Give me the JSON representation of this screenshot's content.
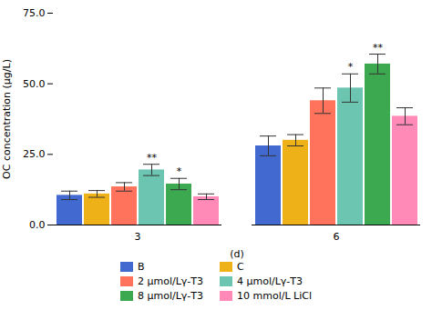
{
  "chart_data": {
    "type": "bar",
    "categories": [
      "3",
      "6"
    ],
    "xlabel": "(d)",
    "ylabel": "OC concentration (μg/L)",
    "series": [
      {
        "name": "B",
        "values": [
          10.5,
          28.0
        ],
        "errors": [
          1.5,
          3.5
        ],
        "annotations": [
          null,
          null
        ]
      },
      {
        "name": "C",
        "values": [
          11.0,
          30.0
        ],
        "errors": [
          1.2,
          2.0
        ],
        "annotations": [
          null,
          null
        ]
      },
      {
        "name": "2 μmol/Lγ-T3",
        "values": [
          13.5,
          44.0
        ],
        "errors": [
          1.5,
          4.5
        ],
        "annotations": [
          null,
          null
        ]
      },
      {
        "name": "4 μmol/Lγ-T3",
        "values": [
          19.5,
          48.5
        ],
        "errors": [
          2.0,
          5.0
        ],
        "annotations": [
          "**",
          "*"
        ]
      },
      {
        "name": "8 μmol/Lγ-T3",
        "values": [
          14.5,
          57.0
        ],
        "errors": [
          2.0,
          3.5
        ],
        "annotations": [
          "*",
          "**"
        ]
      },
      {
        "name": "10 mmol/L LiCl",
        "values": [
          10.0,
          38.5
        ],
        "errors": [
          1.0,
          3.0
        ],
        "annotations": [
          null,
          null
        ]
      }
    ],
    "ylim": [
      0,
      75.0
    ],
    "yticks": [
      {
        "value": 0.0,
        "label": "0.0"
      },
      {
        "value": 25.0,
        "label": "25.0"
      },
      {
        "value": 50.0,
        "label": "50.0"
      },
      {
        "value": 75.0,
        "label": "75.0"
      }
    ],
    "grid": false,
    "legend": "lower center"
  }
}
